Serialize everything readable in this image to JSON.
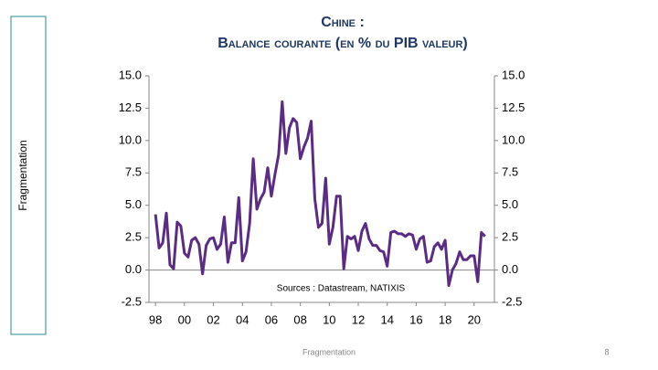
{
  "sidebar": {
    "label": "Fragmentation"
  },
  "chart_data": {
    "type": "line",
    "title": "Chine :",
    "subtitle": "Balance courante (en % du PIB valeur)",
    "annotation": "Sources : Datastream,  NATIXIS",
    "x": [
      1998,
      1998.25,
      1998.5,
      1998.75,
      1999,
      1999.25,
      1999.5,
      1999.75,
      2000,
      2000.25,
      2000.5,
      2000.75,
      2001,
      2001.25,
      2001.5,
      2001.75,
      2002,
      2002.25,
      2002.5,
      2002.75,
      2003,
      2003.25,
      2003.5,
      2003.75,
      2004,
      2004.25,
      2004.5,
      2004.75,
      2005,
      2005.25,
      2005.5,
      2005.75,
      2006,
      2006.25,
      2006.5,
      2006.75,
      2007,
      2007.25,
      2007.5,
      2007.75,
      2008,
      2008.25,
      2008.5,
      2008.75,
      2009,
      2009.25,
      2009.5,
      2009.75,
      2010,
      2010.25,
      2010.5,
      2010.75,
      2011,
      2011.25,
      2011.5,
      2011.75,
      2012,
      2012.25,
      2012.5,
      2012.75,
      2013,
      2013.25,
      2013.5,
      2013.75,
      2014,
      2014.25,
      2014.5,
      2014.75,
      2015,
      2015.25,
      2015.5,
      2015.75,
      2016,
      2016.25,
      2016.5,
      2016.75,
      2017,
      2017.25,
      2017.5,
      2017.75,
      2018,
      2018.25,
      2018.5,
      2018.75,
      2019,
      2019.25,
      2019.5,
      2019.75,
      2020,
      2020.25,
      2020.5,
      2020.75
    ],
    "series": [
      {
        "color": "#5b2c83",
        "values": [
          4.3,
          1.7,
          2.1,
          4.4,
          0.4,
          0.1,
          3.7,
          3.4,
          1.3,
          1.0,
          2.3,
          2.5,
          2.0,
          -0.3,
          1.9,
          2.4,
          2.5,
          1.6,
          2.0,
          4.1,
          0.6,
          2.1,
          2.1,
          5.6,
          0.7,
          1.4,
          3.6,
          8.6,
          4.7,
          5.5,
          6.0,
          7.9,
          5.7,
          7.4,
          8.9,
          13.0,
          9.0,
          11.0,
          11.7,
          11.4,
          8.6,
          9.5,
          10.2,
          11.5,
          5.5,
          3.3,
          3.6,
          7.1,
          2.0,
          3.3,
          5.7,
          5.7,
          0.1,
          2.6,
          2.4,
          2.6,
          1.5,
          3.0,
          3.6,
          2.4,
          1.9,
          1.9,
          1.5,
          1.4,
          0.3,
          2.9,
          3.0,
          2.8,
          2.8,
          2.6,
          2.8,
          2.7,
          1.6,
          2.4,
          2.6,
          0.6,
          0.7,
          1.8,
          2.1,
          1.6,
          2.3,
          -1.2,
          0.0,
          0.5,
          1.4,
          0.8,
          0.8,
          1.1,
          1.1,
          -0.9,
          2.9,
          2.6
        ]
      }
    ],
    "xlim": [
      1997.55,
      2021.4
    ],
    "xticks": [
      {
        "value": 1998,
        "label": "98"
      },
      {
        "value": 2000,
        "label": "00"
      },
      {
        "value": 2002,
        "label": "02"
      },
      {
        "value": 2004,
        "label": "04"
      },
      {
        "value": 2006,
        "label": "06"
      },
      {
        "value": 2008,
        "label": "08"
      },
      {
        "value": 2010,
        "label": "10"
      },
      {
        "value": 2012,
        "label": "12"
      },
      {
        "value": 2014,
        "label": "14"
      },
      {
        "value": 2016,
        "label": "16"
      },
      {
        "value": 2018,
        "label": "18"
      },
      {
        "value": 2020,
        "label": "20"
      }
    ],
    "ylim": [
      -2.5,
      15
    ],
    "yticks": [
      {
        "value": -2.5,
        "label": "-2.5"
      },
      {
        "value": 0,
        "label": "0.0"
      },
      {
        "value": 2.5,
        "label": "2.5"
      },
      {
        "value": 5,
        "label": "5.0"
      },
      {
        "value": 7.5,
        "label": "7.5"
      },
      {
        "value": 10,
        "label": "10.0"
      },
      {
        "value": 12.5,
        "label": "12.5"
      },
      {
        "value": 15,
        "label": "15.0"
      }
    ],
    "y2lim": [
      -2.5,
      15
    ],
    "y2ticks": [
      {
        "value": -2.5,
        "label": "-2.5"
      },
      {
        "value": 0,
        "label": "0.0"
      },
      {
        "value": 2.5,
        "label": "2.5"
      },
      {
        "value": 5,
        "label": "5.0"
      },
      {
        "value": 7.5,
        "label": "7.5"
      },
      {
        "value": 10,
        "label": "10.0"
      },
      {
        "value": 12.5,
        "label": "12.5"
      },
      {
        "value": 15,
        "label": "15.0"
      }
    ]
  },
  "footer": {
    "text": "Fragmentation",
    "page": "8"
  }
}
